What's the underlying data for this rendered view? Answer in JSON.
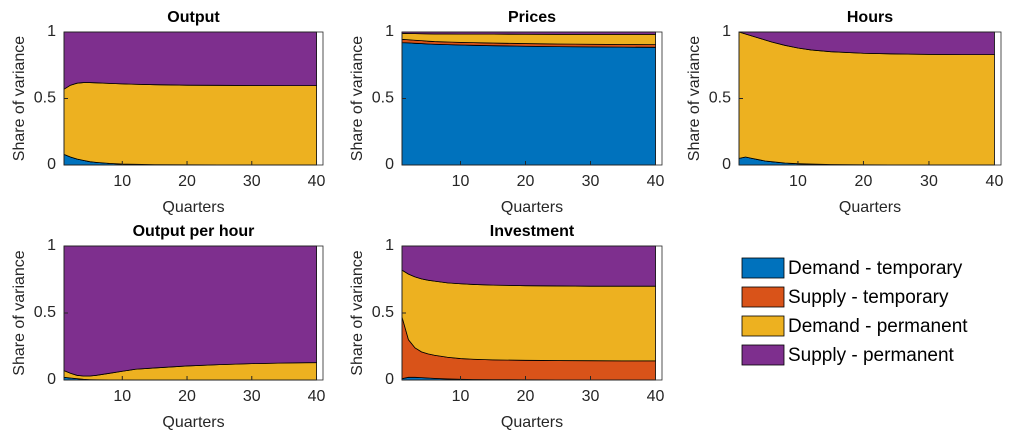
{
  "chart_data": [
    {
      "type": "area",
      "stacked": true,
      "title": "Output",
      "xlabel": "Quarters",
      "ylabel": "Share of variance",
      "x": [
        1,
        2,
        3,
        4,
        5,
        6,
        8,
        10,
        12,
        15,
        20,
        25,
        30,
        35,
        40
      ],
      "xlim": [
        1,
        41
      ],
      "xticks": [
        10,
        20,
        30,
        40
      ],
      "ylim": [
        0,
        1
      ],
      "yticks": [
        0,
        0.5,
        1
      ],
      "series": [
        {
          "name": "Demand - temporary",
          "color": "#0072bd",
          "values": [
            0.08,
            0.06,
            0.045,
            0.035,
            0.025,
            0.02,
            0.012,
            0.007,
            0.005,
            0.003,
            0.002,
            0.001,
            0.001,
            0.001,
            0.001
          ]
        },
        {
          "name": "Supply - temporary",
          "color": "#d95319",
          "values": [
            0,
            0,
            0,
            0,
            0,
            0,
            0,
            0,
            0,
            0,
            0,
            0,
            0,
            0,
            0
          ]
        },
        {
          "name": "Demand - permanent",
          "color": "#edb120",
          "values": [
            0.49,
            0.54,
            0.57,
            0.585,
            0.595,
            0.598,
            0.602,
            0.603,
            0.602,
            0.601,
            0.598,
            0.598,
            0.597,
            0.596,
            0.596
          ]
        },
        {
          "name": "Supply - permanent",
          "color": "#7e2f8e",
          "values": [
            0.43,
            0.4,
            0.385,
            0.38,
            0.38,
            0.382,
            0.386,
            0.39,
            0.393,
            0.396,
            0.4,
            0.401,
            0.402,
            0.403,
            0.403
          ]
        }
      ]
    },
    {
      "type": "area",
      "stacked": true,
      "title": "Prices",
      "xlabel": "Quarters",
      "ylabel": "Share of variance",
      "x": [
        1,
        2,
        3,
        4,
        5,
        6,
        8,
        10,
        12,
        15,
        20,
        25,
        30,
        35,
        40
      ],
      "xlim": [
        1,
        41
      ],
      "xticks": [
        10,
        20,
        30,
        40
      ],
      "ylim": [
        0,
        1
      ],
      "yticks": [
        0,
        0.5,
        1
      ],
      "series": [
        {
          "name": "Demand - temporary",
          "color": "#0072bd",
          "values": [
            0.92,
            0.918,
            0.915,
            0.913,
            0.91,
            0.908,
            0.905,
            0.902,
            0.9,
            0.897,
            0.893,
            0.89,
            0.888,
            0.886,
            0.885
          ]
        },
        {
          "name": "Supply - temporary",
          "color": "#d95319",
          "values": [
            0.025,
            0.024,
            0.023,
            0.022,
            0.021,
            0.02,
            0.02,
            0.02,
            0.02,
            0.02,
            0.02,
            0.02,
            0.02,
            0.02,
            0.02
          ]
        },
        {
          "name": "Demand - permanent",
          "color": "#edb120",
          "values": [
            0.045,
            0.047,
            0.05,
            0.052,
            0.055,
            0.057,
            0.06,
            0.062,
            0.064,
            0.067,
            0.07,
            0.072,
            0.074,
            0.076,
            0.077
          ]
        },
        {
          "name": "Supply - permanent",
          "color": "#7e2f8e",
          "values": [
            0.01,
            0.011,
            0.012,
            0.013,
            0.014,
            0.015,
            0.015,
            0.016,
            0.016,
            0.016,
            0.017,
            0.018,
            0.018,
            0.018,
            0.018
          ]
        }
      ]
    },
    {
      "type": "area",
      "stacked": true,
      "title": "Hours",
      "xlabel": "Quarters",
      "ylabel": "Share of variance",
      "x": [
        1,
        2,
        3,
        4,
        5,
        6,
        8,
        10,
        12,
        15,
        20,
        25,
        30,
        35,
        40
      ],
      "xlim": [
        1,
        41
      ],
      "xticks": [
        10,
        20,
        30,
        40
      ],
      "ylim": [
        0,
        1
      ],
      "yticks": [
        0,
        0.5,
        1
      ],
      "series": [
        {
          "name": "Demand - temporary",
          "color": "#0072bd",
          "values": [
            0.05,
            0.06,
            0.05,
            0.04,
            0.03,
            0.025,
            0.015,
            0.01,
            0.007,
            0.004,
            0.002,
            0.001,
            0.001,
            0.001,
            0.001
          ]
        },
        {
          "name": "Supply - temporary",
          "color": "#d95319",
          "values": [
            0,
            0,
            0,
            0,
            0,
            0,
            0,
            0,
            0,
            0,
            0,
            0,
            0,
            0,
            0
          ]
        },
        {
          "name": "Demand - permanent",
          "color": "#edb120",
          "values": [
            0.95,
            0.925,
            0.92,
            0.915,
            0.91,
            0.9,
            0.885,
            0.87,
            0.858,
            0.848,
            0.838,
            0.834,
            0.831,
            0.829,
            0.829
          ]
        },
        {
          "name": "Supply - permanent",
          "color": "#7e2f8e",
          "values": [
            0,
            0.015,
            0.03,
            0.045,
            0.06,
            0.075,
            0.1,
            0.12,
            0.135,
            0.148,
            0.16,
            0.165,
            0.168,
            0.17,
            0.17
          ]
        }
      ]
    },
    {
      "type": "area",
      "stacked": true,
      "title": "Output per hour",
      "xlabel": "Quarters",
      "ylabel": "Share of variance",
      "x": [
        1,
        2,
        3,
        4,
        5,
        6,
        8,
        10,
        12,
        15,
        20,
        25,
        30,
        35,
        40
      ],
      "xlim": [
        1,
        41
      ],
      "xticks": [
        10,
        20,
        30,
        40
      ],
      "ylim": [
        0,
        1
      ],
      "yticks": [
        0,
        0.5,
        1
      ],
      "series": [
        {
          "name": "Demand - temporary",
          "color": "#0072bd",
          "values": [
            0.02,
            0.015,
            0.01,
            0.005,
            0.003,
            0.002,
            0.001,
            0.001,
            0,
            0,
            0,
            0,
            0,
            0,
            0
          ]
        },
        {
          "name": "Supply - temporary",
          "color": "#d95319",
          "values": [
            0,
            0,
            0,
            0,
            0,
            0,
            0,
            0,
            0,
            0,
            0,
            0,
            0,
            0,
            0
          ]
        },
        {
          "name": "Demand - permanent",
          "color": "#edb120",
          "values": [
            0.05,
            0.035,
            0.025,
            0.025,
            0.027,
            0.033,
            0.049,
            0.064,
            0.08,
            0.09,
            0.105,
            0.115,
            0.122,
            0.127,
            0.13
          ]
        },
        {
          "name": "Supply - permanent",
          "color": "#7e2f8e",
          "values": [
            0.93,
            0.95,
            0.965,
            0.97,
            0.97,
            0.965,
            0.95,
            0.935,
            0.92,
            0.91,
            0.895,
            0.885,
            0.878,
            0.873,
            0.87
          ]
        }
      ]
    },
    {
      "type": "area",
      "stacked": true,
      "title": "Investment",
      "xlabel": "Quarters",
      "ylabel": "Share of variance",
      "x": [
        1,
        2,
        3,
        4,
        5,
        6,
        8,
        10,
        12,
        15,
        20,
        25,
        30,
        35,
        40
      ],
      "xlim": [
        1,
        41
      ],
      "xticks": [
        10,
        20,
        30,
        40
      ],
      "ylim": [
        0,
        1
      ],
      "yticks": [
        0,
        0.5,
        1
      ],
      "series": [
        {
          "name": "Demand - temporary",
          "color": "#0072bd",
          "values": [
            0.01,
            0.02,
            0.02,
            0.018,
            0.015,
            0.012,
            0.008,
            0.005,
            0.004,
            0.003,
            0.002,
            0.001,
            0.001,
            0.001,
            0.001
          ]
        },
        {
          "name": "Supply - temporary",
          "color": "#d95319",
          "values": [
            0.46,
            0.28,
            0.22,
            0.192,
            0.18,
            0.173,
            0.162,
            0.155,
            0.151,
            0.147,
            0.145,
            0.144,
            0.143,
            0.142,
            0.142
          ]
        },
        {
          "name": "Demand - permanent",
          "color": "#edb120",
          "values": [
            0.35,
            0.49,
            0.53,
            0.545,
            0.55,
            0.553,
            0.555,
            0.558,
            0.558,
            0.558,
            0.557,
            0.557,
            0.556,
            0.557,
            0.557
          ]
        },
        {
          "name": "Supply - permanent",
          "color": "#7e2f8e",
          "values": [
            0.18,
            0.21,
            0.23,
            0.245,
            0.255,
            0.262,
            0.275,
            0.282,
            0.287,
            0.292,
            0.296,
            0.298,
            0.3,
            0.3,
            0.3
          ]
        }
      ]
    }
  ]
}
